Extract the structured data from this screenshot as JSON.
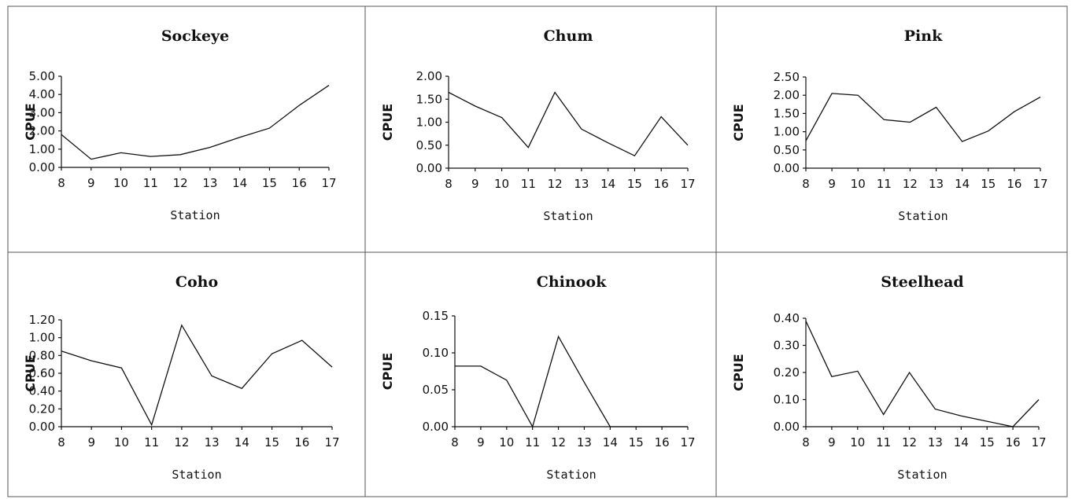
{
  "chart_data": [
    {
      "type": "line",
      "title": "Sockeye",
      "xlabel": "Station",
      "ylabel": "CPUE",
      "x": [
        8,
        9,
        10,
        11,
        12,
        13,
        14,
        15,
        16,
        17
      ],
      "values": [
        1.8,
        0.45,
        0.8,
        0.6,
        0.7,
        1.1,
        1.65,
        2.15,
        3.4,
        4.5
      ],
      "yticks": [
        "0.00",
        "1.00",
        "2.00",
        "3.00",
        "4.00",
        "5.00"
      ],
      "ylim": [
        0,
        5
      ]
    },
    {
      "type": "line",
      "title": "Chum",
      "xlabel": "Station",
      "ylabel": "CPUE",
      "x": [
        8,
        9,
        10,
        11,
        12,
        13,
        14,
        15,
        16,
        17
      ],
      "values": [
        1.65,
        1.35,
        1.1,
        0.45,
        1.65,
        0.85,
        0.55,
        0.27,
        1.12,
        0.5
      ],
      "yticks": [
        "0.00",
        "0.50",
        "1.00",
        "1.50",
        "2.00"
      ],
      "ylim": [
        0,
        2
      ]
    },
    {
      "type": "line",
      "title": "Pink",
      "xlabel": "Station",
      "ylabel": "CPUE",
      "x": [
        8,
        9,
        10,
        11,
        12,
        13,
        14,
        15,
        16,
        17
      ],
      "values": [
        0.75,
        2.05,
        2.0,
        1.33,
        1.26,
        1.67,
        0.73,
        1.02,
        1.55,
        1.95
      ],
      "yticks": [
        "0.00",
        "0.50",
        "1.00",
        "1.50",
        "2.00",
        "2.50"
      ],
      "ylim": [
        0,
        2.5
      ]
    },
    {
      "type": "line",
      "title": "Coho",
      "xlabel": "Station",
      "ylabel": "CPUE",
      "x": [
        8,
        9,
        10,
        11,
        12,
        13,
        14,
        15,
        16,
        17
      ],
      "values": [
        0.85,
        0.74,
        0.66,
        0.02,
        1.14,
        0.57,
        0.43,
        0.82,
        0.97,
        0.67
      ],
      "yticks": [
        "0.00",
        "0.20",
        "0.40",
        "0.60",
        "0.80",
        "1.00",
        "1.20"
      ],
      "ylim": [
        0,
        1.2
      ]
    },
    {
      "type": "line",
      "title": "Chinook",
      "xlabel": "Station",
      "ylabel": "CPUE",
      "x": [
        8,
        9,
        10,
        11,
        12,
        13,
        14,
        15,
        16,
        17
      ],
      "values": [
        0.082,
        0.082,
        0.063,
        0.0,
        0.122,
        0.06,
        0.0,
        0.0,
        0.0,
        0.0
      ],
      "yticks": [
        "0.00",
        "0.05",
        "0.10",
        "0.15"
      ],
      "ylim": [
        0,
        0.15
      ]
    },
    {
      "type": "line",
      "title": "Steelhead",
      "xlabel": "Station",
      "ylabel": "CPUE",
      "x": [
        8,
        9,
        10,
        11,
        12,
        13,
        14,
        15,
        16,
        17
      ],
      "values": [
        0.39,
        0.185,
        0.205,
        0.045,
        0.2,
        0.065,
        0.04,
        0.02,
        0.0,
        0.1
      ],
      "yticks": [
        "0.00",
        "0.10",
        "0.20",
        "0.30",
        "0.40"
      ],
      "ylim": [
        0,
        0.4
      ]
    }
  ]
}
